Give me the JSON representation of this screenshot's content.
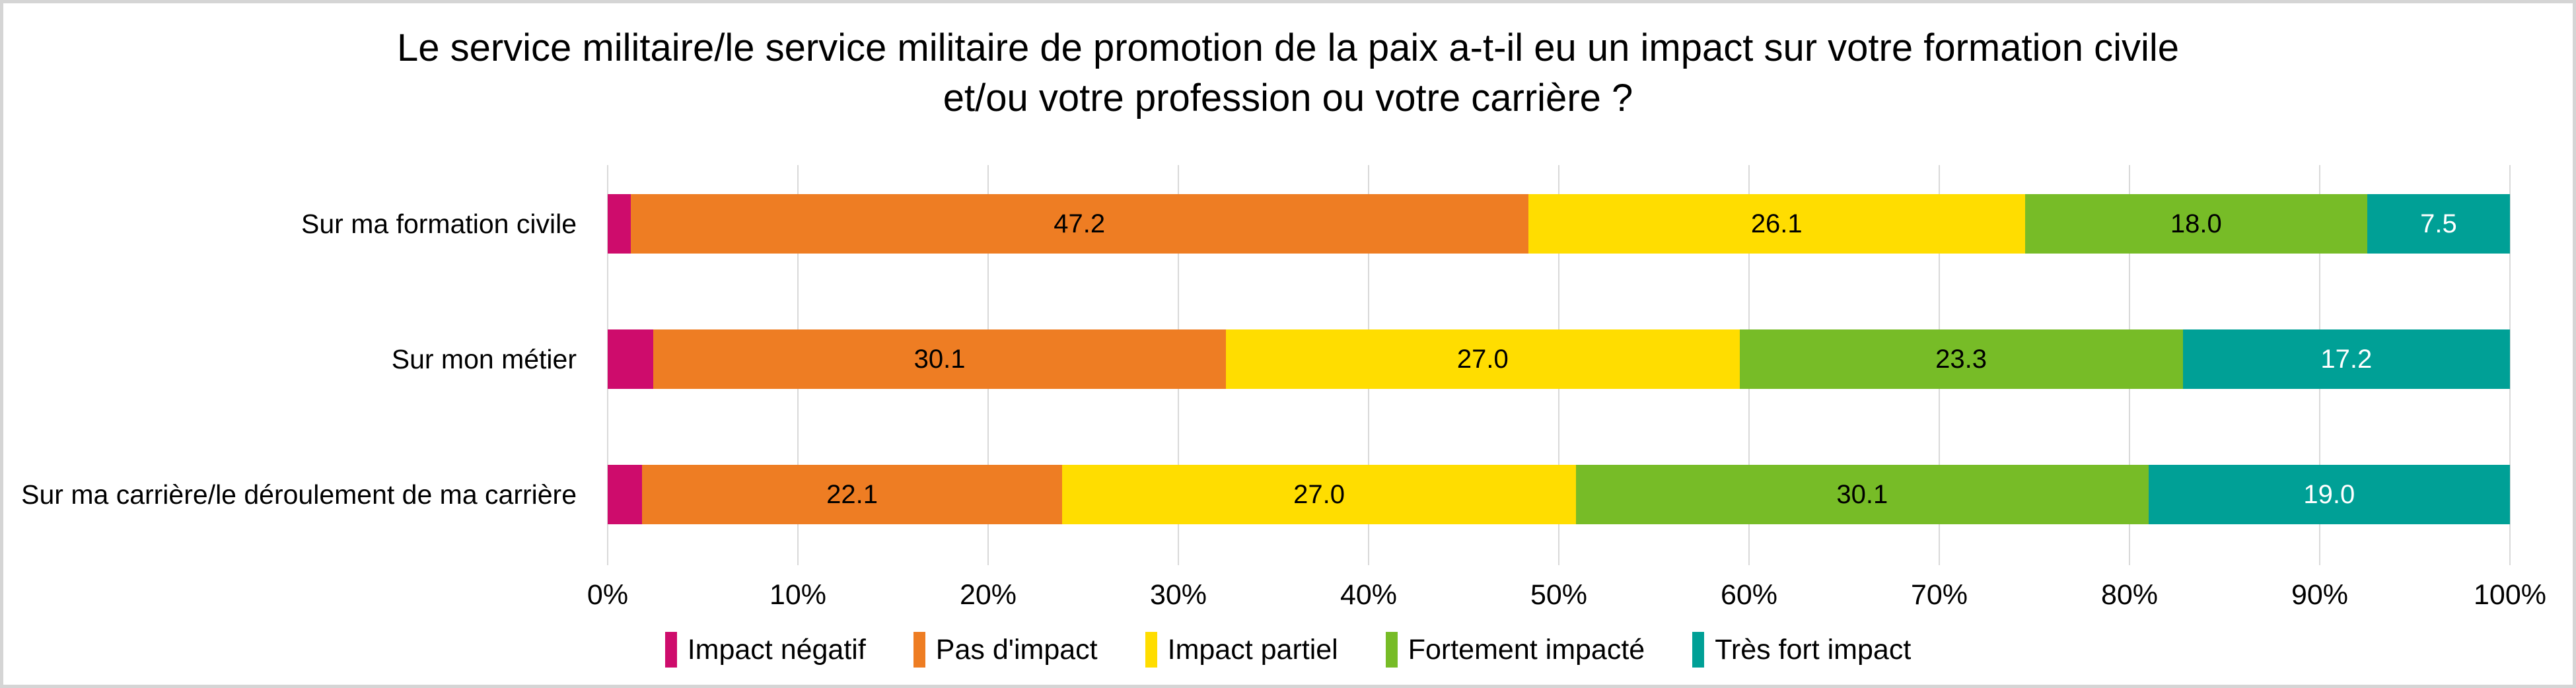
{
  "title": {
    "line1": "Le service militaire/le service militaire de promotion de la paix a-t-il eu un impact sur votre formation civile",
    "line2": "et/ou votre profession ou votre carrière ?"
  },
  "chart_data": {
    "type": "bar",
    "subtype": "stacked-horizontal",
    "title": "Le service militaire/le service militaire de promotion de la paix a-t-il eu un impact sur votre formation civile et/ou votre profession ou votre carrière ?",
    "categories": [
      "Sur ma formation civile",
      "Sur mon métier",
      "Sur ma carrière/le déroulement de ma carrière"
    ],
    "series": [
      {
        "name": "Impact négatif",
        "color": "#CE0C6C",
        "label_color": "#000000",
        "show_labels": false,
        "values": [
          1.2,
          2.4,
          1.8
        ]
      },
      {
        "name": "Pas d'impact",
        "color": "#EE7D23",
        "label_color": "#000000",
        "show_labels": true,
        "values": [
          47.2,
          30.1,
          22.1
        ]
      },
      {
        "name": "Impact partiel",
        "color": "#FFDD00",
        "label_color": "#000000",
        "show_labels": true,
        "values": [
          26.1,
          27.0,
          27.0
        ]
      },
      {
        "name": "Fortement impacté",
        "color": "#77BC27",
        "label_color": "#000000",
        "show_labels": true,
        "values": [
          18.0,
          23.3,
          30.1
        ]
      },
      {
        "name": "Très fort impact",
        "color": "#00A096",
        "label_color": "#FFFFFF",
        "show_labels": true,
        "values": [
          7.5,
          17.2,
          19.0
        ]
      }
    ],
    "data_labels": {
      "format": "one-decimal",
      "examples": [
        "47.2",
        "26.1",
        "18.0",
        "7.5",
        "30.1",
        "27.0",
        "23.3",
        "17.2",
        "22.1",
        "19.0"
      ]
    },
    "x_axis": {
      "min": 0,
      "max": 100,
      "tick_step": 10,
      "tick_labels": [
        "0%",
        "10%",
        "20%",
        "30%",
        "40%",
        "50%",
        "60%",
        "70%",
        "80%",
        "90%",
        "100%"
      ],
      "grid": true
    },
    "legend": {
      "position": "bottom",
      "entries": [
        "Impact négatif",
        "Pas d'impact",
        "Impact partiel",
        "Fortement impacté",
        "Très fort impact"
      ]
    },
    "colors": {
      "grid": "#D9D9D9",
      "background": "#FFFFFF",
      "frame_border": "#D5D5D5",
      "text": "#000000"
    }
  }
}
